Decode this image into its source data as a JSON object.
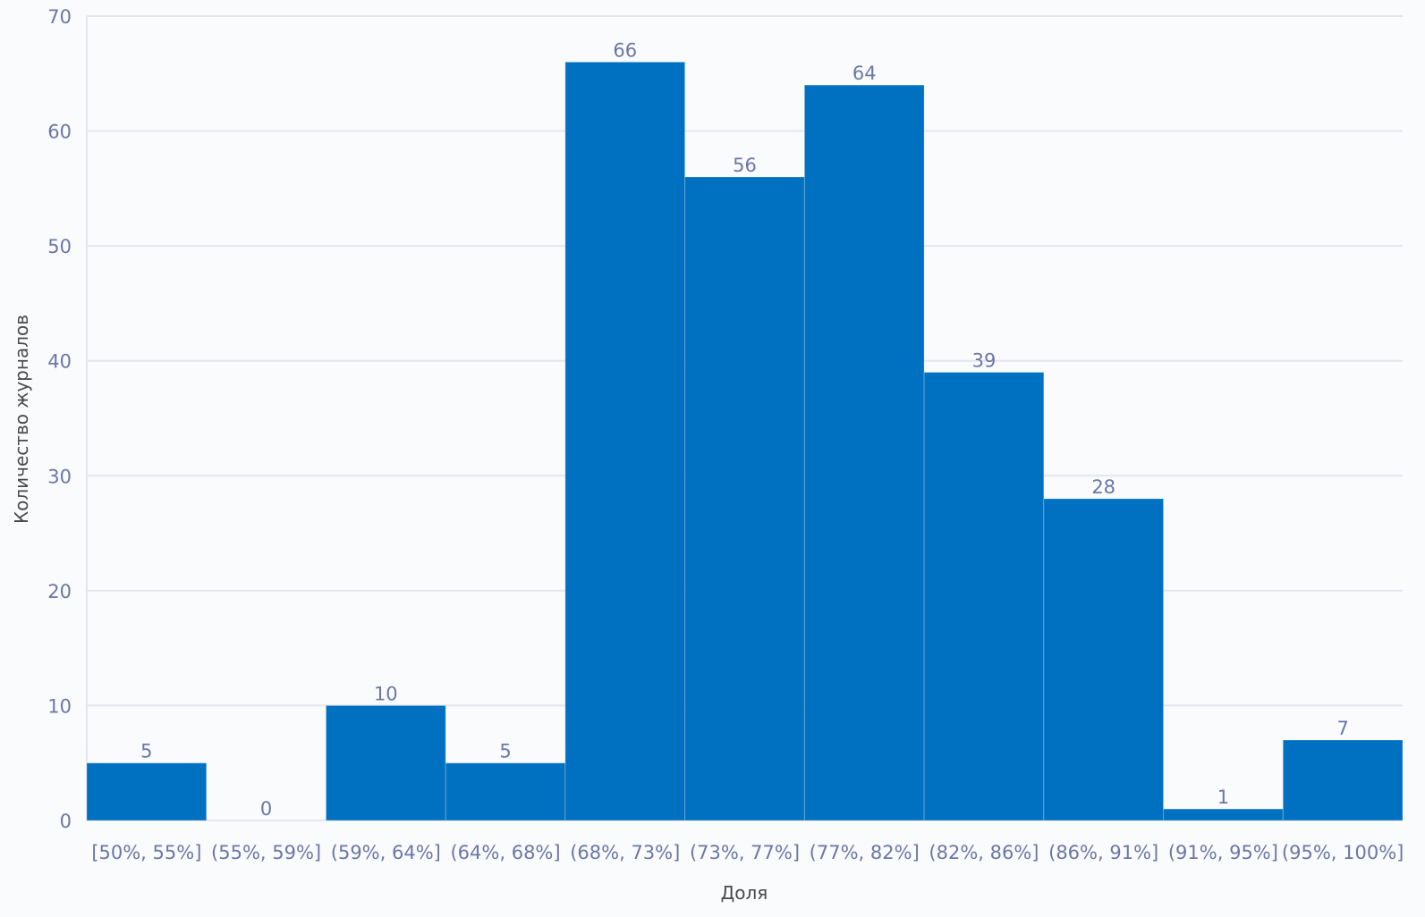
{
  "chart_data": {
    "type": "bar",
    "categories": [
      "[50%, 55%]",
      "(55%, 59%]",
      "(59%, 64%]",
      "(64%, 68%]",
      "(68%, 73%]",
      "(73%, 77%]",
      "(77%, 82%]",
      "(82%, 86%]",
      "(86%, 91%]",
      "(91%, 95%]",
      "(95%, 100%]"
    ],
    "values": [
      5,
      0,
      10,
      5,
      66,
      56,
      64,
      39,
      28,
      1,
      7
    ],
    "data_labels": [
      "5",
      "0",
      "10",
      "5",
      "66",
      "56",
      "64",
      "39",
      "28",
      "1",
      "7"
    ],
    "xlabel": "Доля",
    "ylabel": "Количество журналов",
    "ylim": [
      0,
      70
    ],
    "yticks": [
      0,
      10,
      20,
      30,
      40,
      50,
      60,
      70
    ],
    "ytick_labels": [
      "0",
      "10",
      "20",
      "30",
      "40",
      "50",
      "60",
      "70"
    ],
    "grid": true,
    "bar_color": "#0070c0",
    "grid_color": "#e3e6ef",
    "text_color": "#6b77a6"
  }
}
